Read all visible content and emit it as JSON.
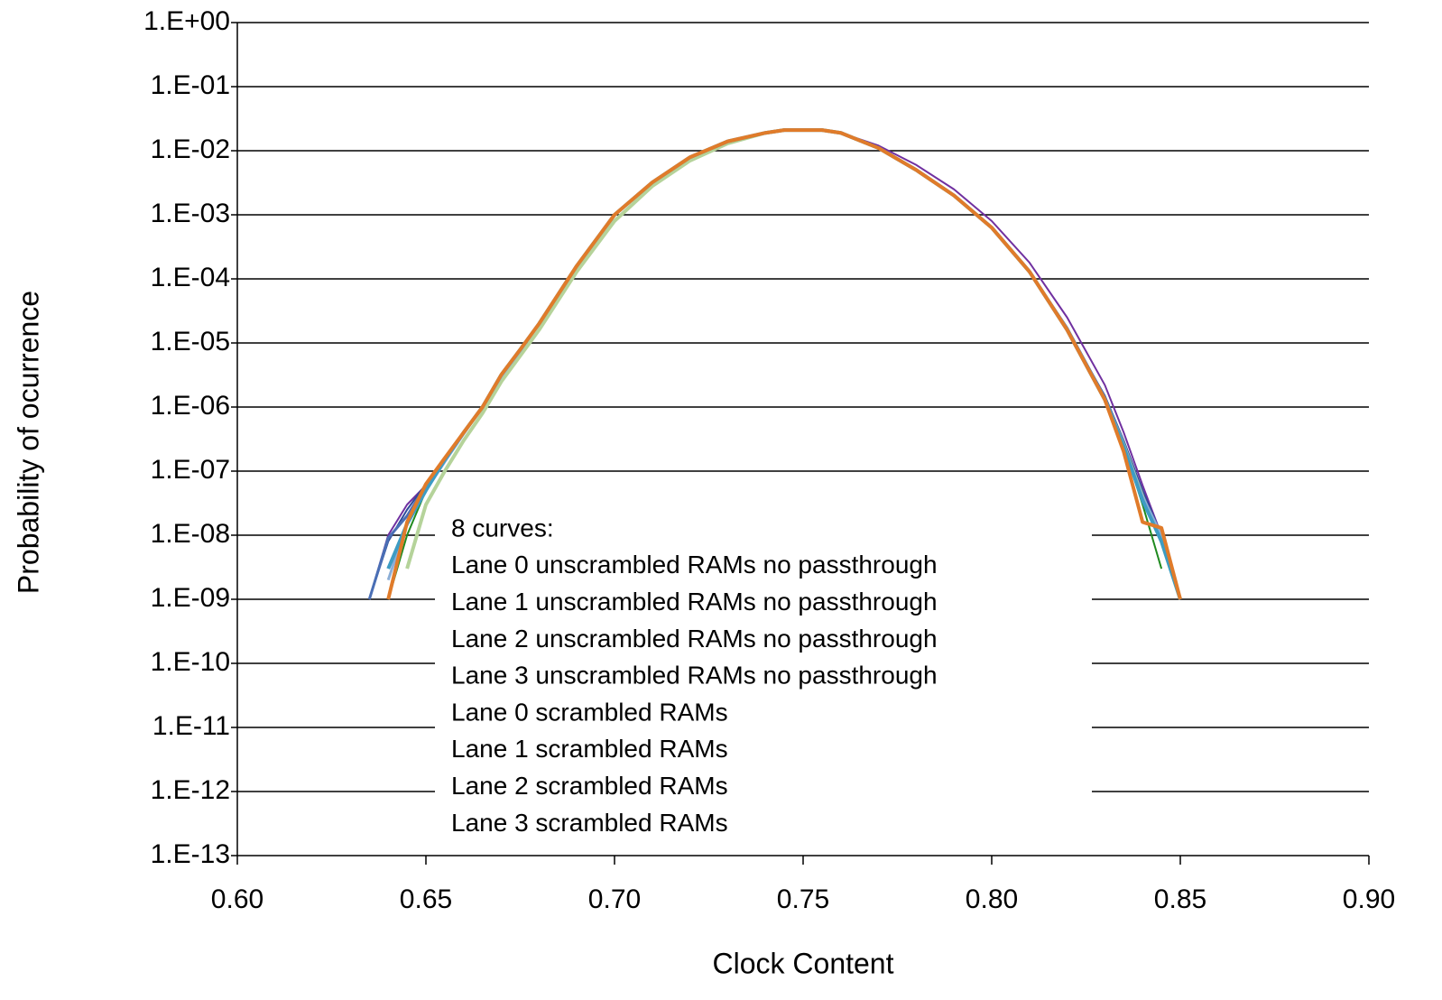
{
  "chart_data": {
    "type": "line",
    "x_label": "Clock Content",
    "y_label": "Probability of ocurrence",
    "legend_title": "8 curves:",
    "log_y": true,
    "grid": true,
    "xlim": [
      0.6,
      0.9
    ],
    "xticks": [
      {
        "value": 0.6,
        "label": "0.60"
      },
      {
        "value": 0.65,
        "label": "0.65"
      },
      {
        "value": 0.7,
        "label": "0.70"
      },
      {
        "value": 0.75,
        "label": "0.75"
      },
      {
        "value": 0.8,
        "label": "0.80"
      },
      {
        "value": 0.85,
        "label": "0.85"
      },
      {
        "value": 0.9,
        "label": "0.90"
      }
    ],
    "ylim": [
      1e-13,
      1
    ],
    "yticks": [
      {
        "value": 1e-13,
        "label": "1.E-13"
      },
      {
        "value": 1e-12,
        "label": "1.E-12"
      },
      {
        "value": 1e-11,
        "label": "1.E-11"
      },
      {
        "value": 1e-10,
        "label": "1.E-10"
      },
      {
        "value": 1e-09,
        "label": "1.E-09"
      },
      {
        "value": 1e-08,
        "label": "1.E-08"
      },
      {
        "value": 1e-07,
        "label": "1.E-07"
      },
      {
        "value": 1e-06,
        "label": "1.E-06"
      },
      {
        "value": 1e-05,
        "label": "1.E-05"
      },
      {
        "value": 0.0001,
        "label": "1.E-04"
      },
      {
        "value": 0.001,
        "label": "1.E-03"
      },
      {
        "value": 0.01,
        "label": "1.E-02"
      },
      {
        "value": 0.1,
        "label": "1.E-01"
      },
      {
        "value": 1,
        "label": "1.E+00"
      }
    ],
    "x": [
      0.635,
      0.64,
      0.645,
      0.65,
      0.655,
      0.66,
      0.665,
      0.67,
      0.675,
      0.68,
      0.69,
      0.7,
      0.71,
      0.72,
      0.73,
      0.74,
      0.745,
      0.75,
      0.755,
      0.76,
      0.77,
      0.78,
      0.79,
      0.8,
      0.81,
      0.82,
      0.83,
      0.835,
      0.84,
      0.845,
      0.85
    ],
    "series": [
      {
        "name": "Lane 0 unscrambled RAMs no passthrough",
        "color": "#7030a0",
        "width": 2,
        "values": [
          1e-09,
          1e-08,
          3e-08,
          6e-08,
          1.6e-07,
          4e-07,
          1e-06,
          3.2e-06,
          7.9e-06,
          2e-05,
          0.00016,
          0.001,
          0.0032,
          0.0079,
          0.014,
          0.019,
          0.021,
          0.021,
          0.021,
          0.019,
          0.012,
          0.006,
          0.0025,
          0.0008,
          0.00018,
          2.5e-05,
          2.2e-06,
          4e-07,
          6e-08,
          1e-08,
          1e-09
        ]
      },
      {
        "name": "Lane 1 unscrambled RAMs no passthrough",
        "color": "#2e4a9a",
        "width": 2,
        "values": [
          1e-09,
          8e-09,
          2.5e-08,
          6.3e-08,
          1.6e-07,
          4e-07,
          1e-06,
          3.2e-06,
          7.9e-06,
          2e-05,
          0.00016,
          0.001,
          0.0032,
          0.0079,
          0.014,
          0.019,
          0.021,
          0.021,
          0.021,
          0.019,
          0.011,
          0.005,
          0.002,
          0.00063,
          0.00013,
          1.6e-05,
          1.5e-06,
          3e-07,
          5e-08,
          1e-08,
          1e-09
        ]
      },
      {
        "name": "Lane 2 unscrambled RAMs no passthrough",
        "color": "#1f8a1f",
        "width": 2,
        "values": [
          null,
          1e-09,
          1e-08,
          5e-08,
          1.5e-07,
          4e-07,
          1e-06,
          3.2e-06,
          7.9e-06,
          2e-05,
          0.00016,
          0.001,
          0.0032,
          0.0079,
          0.014,
          0.019,
          0.021,
          0.021,
          0.021,
          0.019,
          0.011,
          0.005,
          0.002,
          0.00063,
          0.00013,
          1.6e-05,
          1.3e-06,
          2.5e-07,
          3e-08,
          3e-09,
          null
        ]
      },
      {
        "name": "Lane 3 unscrambled RAMs no passthrough",
        "color": "#4a6fb5",
        "width": 3,
        "values": [
          1e-09,
          9e-09,
          2e-08,
          6e-08,
          1.6e-07,
          4e-07,
          1e-06,
          3.2e-06,
          7.9e-06,
          2e-05,
          0.00016,
          0.001,
          0.0032,
          0.0079,
          0.014,
          0.019,
          0.021,
          0.021,
          0.021,
          0.019,
          0.011,
          0.005,
          0.002,
          0.00063,
          0.00013,
          1.7e-05,
          1.4e-06,
          2.8e-07,
          4e-08,
          1e-08,
          1e-09
        ]
      },
      {
        "name": "Lane 0 scrambled RAMs",
        "color": "#b5d39a",
        "width": 4,
        "values": [
          null,
          null,
          3e-09,
          3e-08,
          1e-07,
          3e-07,
          8e-07,
          2.5e-06,
          6.3e-06,
          1.6e-05,
          0.00013,
          0.0008,
          0.0028,
          0.007,
          0.013,
          0.019,
          0.021,
          0.021,
          0.021,
          0.019,
          0.011,
          0.005,
          0.002,
          0.00063,
          0.00013,
          1.6e-05,
          1.3e-06,
          2.5e-07,
          4e-08,
          8e-09,
          1e-09
        ]
      },
      {
        "name": "Lane 1 scrambled RAMs",
        "color": "#8caed6",
        "width": 3,
        "values": [
          null,
          2e-09,
          1.5e-08,
          5e-08,
          1.4e-07,
          3.8e-07,
          1e-06,
          3e-06,
          7.5e-06,
          2e-05,
          0.00016,
          0.001,
          0.0032,
          0.0079,
          0.014,
          0.019,
          0.021,
          0.021,
          0.021,
          0.019,
          0.011,
          0.005,
          0.002,
          0.00063,
          0.00013,
          1.6e-05,
          1.3e-06,
          2.5e-07,
          4e-08,
          1e-08,
          1e-09
        ]
      },
      {
        "name": "Lane 2 scrambled RAMs",
        "color": "#3d9cc4",
        "width": 4,
        "values": [
          null,
          3e-09,
          1.5e-08,
          5e-08,
          1.5e-07,
          4e-07,
          1e-06,
          3.2e-06,
          7.9e-06,
          2e-05,
          0.00016,
          0.001,
          0.0032,
          0.0079,
          0.014,
          0.019,
          0.021,
          0.021,
          0.021,
          0.019,
          0.011,
          0.005,
          0.002,
          0.00063,
          0.00013,
          1.6e-05,
          1.3e-06,
          2.4e-07,
          3.5e-08,
          8e-09,
          1e-09
        ]
      },
      {
        "name": "Lane 3 scrambled RAMs",
        "color": "#e07b2a",
        "width": 4,
        "values": [
          null,
          1e-09,
          1.6e-08,
          6.3e-08,
          1.6e-07,
          4e-07,
          1e-06,
          3.2e-06,
          7.9e-06,
          2e-05,
          0.00016,
          0.001,
          0.0032,
          0.0079,
          0.014,
          0.019,
          0.021,
          0.021,
          0.021,
          0.019,
          0.011,
          0.005,
          0.002,
          0.00063,
          0.00013,
          1.6e-05,
          1.3e-06,
          2e-07,
          1.6e-08,
          1.3e-08,
          1e-09
        ]
      }
    ]
  }
}
